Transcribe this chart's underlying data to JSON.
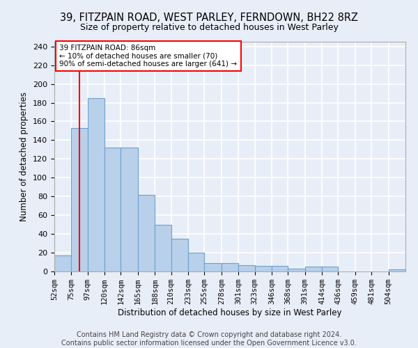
{
  "title1": "39, FITZPAIN ROAD, WEST PARLEY, FERNDOWN, BH22 8RZ",
  "title2": "Size of property relative to detached houses in West Parley",
  "xlabel": "Distribution of detached houses by size in West Parley",
  "ylabel": "Number of detached properties",
  "bin_labels": [
    "52sqm",
    "75sqm",
    "97sqm",
    "120sqm",
    "142sqm",
    "165sqm",
    "188sqm",
    "210sqm",
    "233sqm",
    "255sqm",
    "278sqm",
    "301sqm",
    "323sqm",
    "346sqm",
    "368sqm",
    "391sqm",
    "414sqm",
    "436sqm",
    "459sqm",
    "481sqm",
    "504sqm"
  ],
  "bin_edges": [
    52,
    75,
    97,
    120,
    142,
    165,
    188,
    210,
    233,
    255,
    278,
    301,
    323,
    346,
    368,
    391,
    414,
    436,
    459,
    481,
    504
  ],
  "bar_heights": [
    17,
    153,
    185,
    132,
    132,
    82,
    50,
    35,
    20,
    9,
    9,
    7,
    6,
    6,
    3,
    5,
    5,
    0,
    0,
    0,
    2
  ],
  "bar_color": "#b8d0ea",
  "bar_edge_color": "#6fa0cc",
  "property_line_x": 86,
  "annotation_line1": "39 FITZPAIN ROAD: 86sqm",
  "annotation_line2": "← 10% of detached houses are smaller (70)",
  "annotation_line3": "90% of semi-detached houses are larger (641) →",
  "annotation_box_color": "white",
  "annotation_box_edge_color": "red",
  "red_line_color": "red",
  "background_color": "#e8eef8",
  "grid_color": "white",
  "footer1": "Contains HM Land Registry data © Crown copyright and database right 2024.",
  "footer2": "Contains public sector information licensed under the Open Government Licence v3.0.",
  "ylim": [
    0,
    245
  ],
  "yticks": [
    0,
    20,
    40,
    60,
    80,
    100,
    120,
    140,
    160,
    180,
    200,
    220,
    240
  ]
}
